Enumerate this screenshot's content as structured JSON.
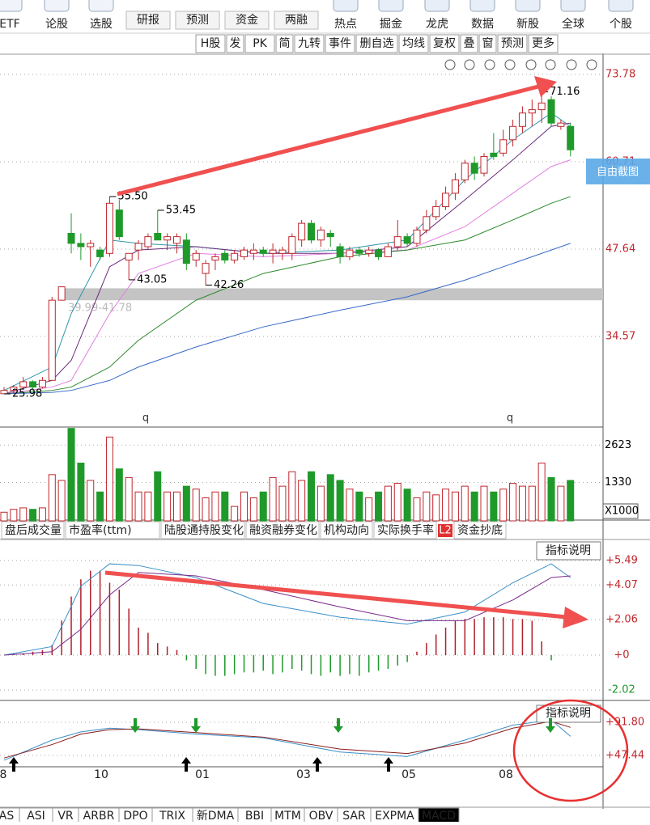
{
  "toolbar": [
    "ETF",
    "论股",
    "选股",
    "研报",
    "预测",
    "资金",
    "两融",
    "热点",
    "掘金",
    "龙虎",
    "数据",
    "新股",
    "全球",
    "个股"
  ],
  "tools": [
    "H股",
    "发",
    "PK",
    "简",
    "九转",
    "事件",
    "删自选",
    "均线",
    "复权",
    "叠",
    "窗",
    "预测",
    "更多"
  ],
  "screenshot_tip": "自由截图",
  "main_chart": {
    "type": "candlestick",
    "ylim": [
      21.38,
      76.44
    ],
    "yticks": [
      {
        "value": 73.78,
        "label": "73.78"
      },
      {
        "value": 60.71,
        "label": "60.71"
      },
      {
        "value": 47.64,
        "label": "47.64"
      },
      {
        "value": 34.57,
        "label": "34.57"
      }
    ],
    "candles": [
      [
        26,
        27,
        25.98,
        26.5
      ],
      [
        26.5,
        27.3,
        26,
        27
      ],
      [
        27,
        28.5,
        26.8,
        27.8
      ],
      [
        27.8,
        28,
        26.5,
        27
      ],
      [
        27,
        28.5,
        26.8,
        28
      ],
      [
        28,
        40.5,
        28,
        40
      ],
      [
        40,
        42,
        39.99,
        42
      ],
      [
        50,
        53,
        47,
        48.5
      ],
      [
        48.5,
        50,
        46,
        48
      ],
      [
        48,
        49,
        45,
        48.5
      ],
      [
        47.5,
        48,
        46,
        46.5
      ],
      [
        47,
        55.5,
        46.5,
        54.5
      ],
      [
        53.5,
        55,
        49,
        49.5
      ],
      [
        46,
        47,
        43.05,
        47
      ],
      [
        47.5,
        49,
        46,
        48.5
      ],
      [
        48,
        50,
        47.5,
        49.5
      ],
      [
        50,
        53.45,
        49,
        49
      ],
      [
        49,
        50,
        47.5,
        49.5
      ],
      [
        48.5,
        50,
        47,
        49.5
      ],
      [
        49,
        50,
        44.5,
        45.5
      ],
      [
        46,
        47.5,
        45,
        47
      ],
      [
        44,
        46,
        42.26,
        45.5
      ],
      [
        46,
        47,
        44.5,
        46.5
      ],
      [
        47,
        47.5,
        45.5,
        46
      ],
      [
        46,
        47.5,
        45.5,
        47
      ],
      [
        46.5,
        48,
        46,
        47.5
      ],
      [
        47,
        48.5,
        46,
        47.5
      ],
      [
        47.5,
        48,
        46.5,
        47
      ],
      [
        47,
        48.5,
        45.5,
        47.5
      ],
      [
        47,
        48,
        46,
        47.5
      ],
      [
        47,
        50,
        46,
        49.5
      ],
      [
        49,
        52,
        48,
        51.5
      ],
      [
        51.5,
        52,
        48.5,
        49
      ],
      [
        49,
        51,
        48,
        50.5
      ],
      [
        50,
        50.5,
        48,
        49.5
      ],
      [
        48,
        48.5,
        45.5,
        46.5
      ],
      [
        46.5,
        48,
        46,
        47.5
      ],
      [
        47.5,
        48,
        46.5,
        47
      ],
      [
        47,
        48,
        46.5,
        47.5
      ],
      [
        47.5,
        47.8,
        46,
        46.5
      ],
      [
        46.5,
        48.5,
        46.5,
        48
      ],
      [
        48,
        52,
        47.5,
        49.5
      ],
      [
        49.5,
        50,
        48,
        48.5
      ],
      [
        48.5,
        51,
        48,
        50.5
      ],
      [
        50.5,
        53.5,
        50,
        52.5
      ],
      [
        52.5,
        55,
        52,
        54
      ],
      [
        54,
        57,
        53.5,
        56
      ],
      [
        56,
        59,
        55,
        58
      ],
      [
        58,
        61,
        57.5,
        60.5
      ],
      [
        60.5,
        61.5,
        58,
        59
      ],
      [
        59,
        62,
        58.5,
        61.5
      ],
      [
        62,
        65,
        61,
        61.5
      ],
      [
        62,
        65.5,
        61.5,
        64
      ],
      [
        64,
        67,
        63,
        66
      ],
      [
        66,
        69,
        65,
        68
      ],
      [
        68,
        70,
        66,
        68.5
      ],
      [
        68.5,
        71.16,
        66.5,
        69.5
      ],
      [
        70,
        70.5,
        66,
        66.5
      ],
      [
        66,
        67,
        65.5,
        66.5
      ],
      [
        66,
        66.5,
        61.5,
        62.5
      ]
    ],
    "ma_x": [
      0,
      5,
      7,
      11,
      14,
      20,
      27,
      35,
      42,
      48,
      53,
      57,
      59
    ],
    "ma": [
      {
        "color": "#2e95a8",
        "values": [
          26.5,
          30,
          38,
          49,
          48.5,
          48,
          47,
          47.5,
          49,
          58,
          64,
          68,
          66
        ]
      },
      {
        "color": "#6a2a7a",
        "values": [
          26,
          28,
          31,
          45,
          47.5,
          48,
          47,
          47,
          48,
          55,
          61,
          66,
          66.5
        ]
      },
      {
        "color": "#e27fe0",
        "values": [
          26,
          27,
          28,
          38,
          44,
          47,
          46.5,
          47,
          47.5,
          51,
          56,
          60,
          61
        ]
      },
      {
        "color": "#2a8a2a",
        "values": [
          26,
          26.5,
          27,
          30,
          34,
          40,
          44,
          46.5,
          47.5,
          49,
          52,
          54.5,
          55.5
        ]
      },
      {
        "color": "#3a6ac8",
        "values": [
          26,
          26.2,
          26.5,
          28,
          30,
          33,
          36,
          38.5,
          40.5,
          43,
          45.5,
          47.5,
          48.5
        ]
      }
    ],
    "band": {
      "low": 39.99,
      "high": 41.78,
      "label": "39.99-41.78"
    },
    "price_marks": [
      {
        "value": 71.16,
        "label": "71.16"
      },
      {
        "value": 55.5,
        "label": "55.50"
      },
      {
        "value": 53.45,
        "label": "53.45"
      },
      {
        "value": 43.05,
        "label": "43.05"
      },
      {
        "value": 42.26,
        "label": "42.26"
      },
      {
        "value": 25.98,
        "label": "25.98"
      }
    ],
    "markers": [
      "q",
      "q"
    ],
    "up_color": "#c0272d",
    "down_color": "#1f9a2a"
  },
  "volume_chart": {
    "type": "bar",
    "ylim": [
      0,
      3050
    ],
    "yticks": [
      2623,
      1330
    ],
    "unit": "X1000",
    "values": [
      300,
      400,
      450,
      400,
      450,
      1600,
      1400,
      3200,
      2000,
      1400,
      1000,
      2900,
      1800,
      1500,
      1000,
      1000,
      1700,
      1000,
      1000,
      1200,
      1100,
      800,
      1000,
      1000,
      500,
      1000,
      800,
      1000,
      1500,
      1200,
      1700,
      1400,
      1700,
      1200,
      1600,
      1400,
      1100,
      1000,
      800,
      1000,
      1200,
      1300,
      1100,
      800,
      1000,
      900,
      1100,
      1000,
      1200,
      1000,
      1200,
      1000,
      1100,
      1300,
      1200,
      1200,
      2000,
      1500,
      1200,
      1400
    ]
  },
  "indicator_tabs": [
    "盘后成交量",
    "市盈率(ttm)",
    "陆股通持股变化",
    "融资融券变化",
    "机构动向",
    "实际换手率",
    "资金抄底"
  ],
  "l2_badge": "L2",
  "macd_chart": {
    "type": "macd",
    "button": "指标说明",
    "ylim": [
      -2.58,
      6.57
    ],
    "yticks": [
      {
        "value": 5.49,
        "label": "+5.49"
      },
      {
        "value": 4.07,
        "label": "+4.07"
      },
      {
        "value": 2.06,
        "label": "+2.06"
      },
      {
        "value": 0,
        "label": "+0"
      },
      {
        "value": -2.02,
        "label": "-2.02"
      }
    ],
    "histogram": [
      0,
      0.1,
      0.1,
      0.2,
      0.3,
      0.6,
      2,
      3.4,
      4.4,
      4.9,
      4.9,
      4.2,
      3.8,
      2.7,
      1.6,
      1.3,
      0.7,
      0.5,
      0.3,
      -0.3,
      -0.8,
      -1.1,
      -1.2,
      -1.2,
      -1.1,
      -1,
      -1,
      -0.9,
      -1.1,
      -1,
      -0.8,
      -0.9,
      -1.1,
      -1.2,
      -1,
      -1.2,
      -1.1,
      -1.2,
      -1,
      -0.9,
      -0.8,
      -0.6,
      -0.4,
      0.2,
      0.7,
      1.2,
      1.6,
      2,
      2.1,
      2.1,
      2.2,
      2.2,
      2.2,
      2.1,
      2.1,
      2,
      0.8,
      -0.3,
      0,
      0
    ],
    "line_x": [
      0,
      5,
      8,
      11,
      14,
      20,
      27,
      35,
      42,
      48,
      53,
      57,
      59
    ],
    "lines": [
      {
        "color": "#3a8fc8",
        "values": [
          0,
          0.5,
          4,
          5.3,
          5.2,
          4.5,
          3,
          2.2,
          1.8,
          2.5,
          4.2,
          5.3,
          4.5
        ]
      },
      {
        "color": "#7a2a8a",
        "values": [
          0,
          0.2,
          1.5,
          3.5,
          4.8,
          4.6,
          3.8,
          2.8,
          2,
          2,
          3.2,
          4.5,
          4.6
        ]
      }
    ]
  },
  "lower_chart": {
    "type": "line",
    "button": "指标说明",
    "ylim": [
      32.3,
      116.7
    ],
    "yticks": [
      {
        "value": 91.8,
        "label": "+91.80"
      },
      {
        "value": 47.44,
        "label": "+47.44"
      }
    ],
    "line_x": [
      0,
      5,
      8,
      11,
      14,
      20,
      27,
      35,
      42,
      48,
      53,
      57,
      59
    ],
    "lines": [
      {
        "color": "#3a8fc8",
        "values": [
          41,
          68,
          79,
          84,
          82,
          76,
          71,
          52,
          46,
          68,
          88,
          95,
          73
        ]
      },
      {
        "color": "#8a1a1a",
        "values": [
          44,
          62,
          76,
          82,
          83,
          78,
          72,
          56,
          50,
          64,
          84,
          93,
          85
        ]
      }
    ]
  },
  "dates": [
    "8",
    "10",
    "01",
    "03",
    "05",
    "08"
  ],
  "bottom_tabs": [
    "AS",
    "ASI",
    "VR",
    "ARBR",
    "DPO",
    "TRIX",
    "新DMA",
    "BBI",
    "MTM",
    "OBV",
    "SAR",
    "EXPMA",
    "MACD"
  ]
}
